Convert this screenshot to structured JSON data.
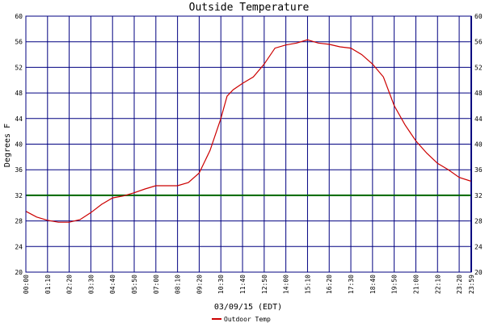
{
  "chart_data": {
    "type": "line",
    "title": "Outside Temperature",
    "xlabel": "03/09/15 (EDT)",
    "ylabel": "Degrees F",
    "ylim": [
      20,
      60
    ],
    "yticks": [
      20,
      24,
      28,
      32,
      36,
      40,
      44,
      48,
      52,
      56,
      60
    ],
    "xticks": [
      "00:00",
      "01:10",
      "02:20",
      "03:30",
      "04:40",
      "05:50",
      "07:00",
      "08:10",
      "09:20",
      "10:30",
      "11:40",
      "12:50",
      "14:00",
      "15:10",
      "16:20",
      "17:30",
      "18:40",
      "19:50",
      "21:00",
      "22:10",
      "23:20",
      "23:59"
    ],
    "reference_line": {
      "value": 32,
      "color": "#006400"
    },
    "series": [
      {
        "name": "Outdoor Temp",
        "color": "#cc0000",
        "x": [
          "00:00",
          "00:35",
          "01:10",
          "01:45",
          "02:20",
          "02:55",
          "03:30",
          "04:05",
          "04:40",
          "05:15",
          "05:50",
          "06:25",
          "07:00",
          "07:35",
          "08:10",
          "08:45",
          "09:20",
          "09:55",
          "10:30",
          "10:50",
          "11:10",
          "11:40",
          "12:15",
          "12:50",
          "13:25",
          "14:00",
          "14:35",
          "15:10",
          "15:45",
          "16:20",
          "16:55",
          "17:30",
          "18:05",
          "18:40",
          "19:15",
          "19:50",
          "20:25",
          "21:00",
          "21:35",
          "22:10",
          "22:45",
          "23:20",
          "23:59"
        ],
        "values": [
          29.5,
          28.6,
          28.1,
          27.8,
          27.8,
          28.2,
          29.3,
          30.6,
          31.6,
          31.9,
          32.4,
          33.0,
          33.5,
          33.5,
          33.5,
          34.0,
          35.5,
          39.0,
          44.0,
          47.5,
          48.5,
          49.5,
          50.5,
          52.5,
          55.0,
          55.5,
          55.8,
          56.3,
          55.8,
          55.6,
          55.2,
          55.0,
          54.0,
          52.5,
          50.5,
          46.0,
          43.0,
          40.5,
          38.6,
          37.0,
          36.0,
          34.8,
          34.2
        ]
      }
    ],
    "legend": "bottom-center",
    "grid": true,
    "colors": {
      "grid": "#000080",
      "axis": "#000080"
    }
  }
}
